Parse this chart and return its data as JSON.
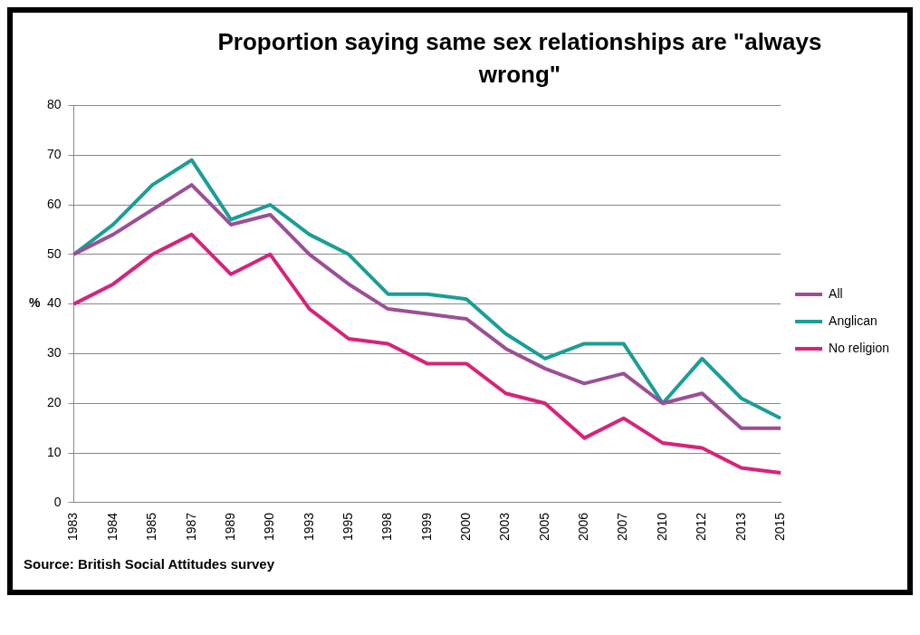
{
  "chart_data": {
    "type": "line",
    "title": "Proportion  saying same sex relationships  are \"always wrong\"",
    "ylabel": "%",
    "categories": [
      "1983",
      "1984",
      "1985",
      "1987",
      "1989",
      "1990",
      "1993",
      "1995",
      "1998",
      "1999",
      "2000",
      "2003",
      "2005",
      "2006",
      "2007",
      "2010",
      "2012",
      "2013",
      "2015"
    ],
    "series": [
      {
        "name": "All",
        "color": "#9b4f96",
        "values": [
          50,
          54,
          59,
          64,
          56,
          58,
          50,
          44,
          39,
          38,
          37,
          31,
          27,
          24,
          26,
          20,
          22,
          15,
          15
        ]
      },
      {
        "name": "Anglican",
        "color": "#1a9e96",
        "values": [
          50,
          56,
          64,
          69,
          57,
          60,
          54,
          50,
          42,
          42,
          41,
          34,
          29,
          32,
          32,
          20,
          29,
          21,
          17
        ]
      },
      {
        "name": "No religion",
        "color": "#d6237a",
        "values": [
          40,
          44,
          50,
          54,
          46,
          50,
          39,
          33,
          32,
          28,
          28,
          22,
          20,
          13,
          17,
          12,
          11,
          7,
          6
        ]
      }
    ],
    "ylim": [
      0,
      80
    ],
    "yticks": [
      0,
      10,
      20,
      30,
      40,
      50,
      60,
      70,
      80
    ],
    "grid": "y",
    "legend": "right",
    "marker": "none",
    "line_style": "solid",
    "annotations": [
      "Source: British Social Attitudes survey"
    ]
  }
}
